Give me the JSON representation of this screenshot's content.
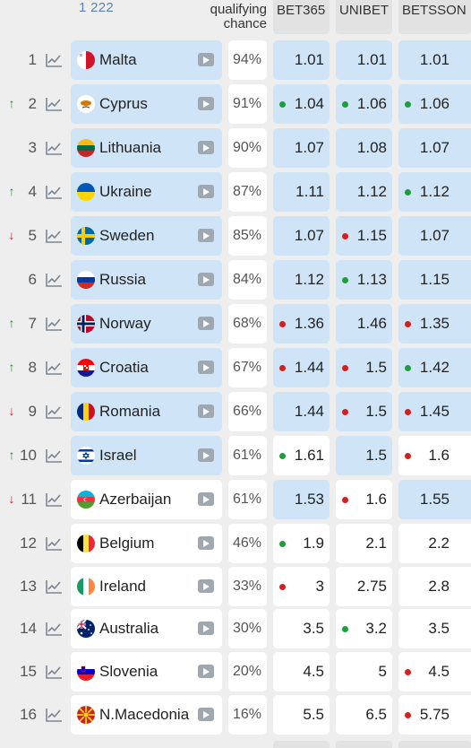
{
  "header": {
    "votes": "1 222",
    "qualifying_line1": "qualifying",
    "qualifying_line2": "chance",
    "bookmakers": [
      "BET365",
      "UNIBET",
      "BETSSON"
    ]
  },
  "colors": {
    "highlight": "#cfe5f7",
    "up": "#2e8b2e",
    "down": "#cc1f1f",
    "dot_green": "#1e9e3a",
    "dot_red": "#d21f1f"
  },
  "rows": [
    {
      "rank": "1",
      "move": "none",
      "country": "Malta",
      "flag": "flag-malta",
      "chance": "94%",
      "highlight": true,
      "odds": [
        {
          "v": "1.01",
          "dot": "",
          "hl": true
        },
        {
          "v": "1.01",
          "dot": "",
          "hl": true
        },
        {
          "v": "1.01",
          "dot": "",
          "hl": true
        }
      ]
    },
    {
      "rank": "2",
      "move": "up",
      "country": "Cyprus",
      "flag": "flag-cyprus",
      "chance": "91%",
      "highlight": true,
      "odds": [
        {
          "v": "1.04",
          "dot": "green",
          "hl": true
        },
        {
          "v": "1.06",
          "dot": "green",
          "hl": true
        },
        {
          "v": "1.06",
          "dot": "green",
          "hl": true
        }
      ]
    },
    {
      "rank": "3",
      "move": "none",
      "country": "Lithuania",
      "flag": "flag-lithuania",
      "chance": "90%",
      "highlight": true,
      "odds": [
        {
          "v": "1.07",
          "dot": "",
          "hl": true
        },
        {
          "v": "1.08",
          "dot": "",
          "hl": true
        },
        {
          "v": "1.07",
          "dot": "",
          "hl": true
        }
      ]
    },
    {
      "rank": "4",
      "move": "up",
      "country": "Ukraine",
      "flag": "flag-ukraine",
      "chance": "87%",
      "highlight": true,
      "odds": [
        {
          "v": "1.11",
          "dot": "",
          "hl": true
        },
        {
          "v": "1.12",
          "dot": "",
          "hl": true
        },
        {
          "v": "1.12",
          "dot": "green",
          "hl": true
        }
      ]
    },
    {
      "rank": "5",
      "move": "down",
      "country": "Sweden",
      "flag": "flag-sweden",
      "chance": "85%",
      "highlight": true,
      "odds": [
        {
          "v": "1.07",
          "dot": "",
          "hl": true
        },
        {
          "v": "1.15",
          "dot": "red",
          "hl": true
        },
        {
          "v": "1.07",
          "dot": "",
          "hl": true
        }
      ]
    },
    {
      "rank": "6",
      "move": "none",
      "country": "Russia",
      "flag": "flag-russia",
      "chance": "84%",
      "highlight": true,
      "odds": [
        {
          "v": "1.12",
          "dot": "",
          "hl": true
        },
        {
          "v": "1.13",
          "dot": "green",
          "hl": true
        },
        {
          "v": "1.15",
          "dot": "",
          "hl": true
        }
      ]
    },
    {
      "rank": "7",
      "move": "up",
      "country": "Norway",
      "flag": "flag-norway",
      "chance": "68%",
      "highlight": true,
      "odds": [
        {
          "v": "1.36",
          "dot": "red",
          "hl": true
        },
        {
          "v": "1.46",
          "dot": "",
          "hl": true
        },
        {
          "v": "1.35",
          "dot": "red",
          "hl": true
        }
      ]
    },
    {
      "rank": "8",
      "move": "up",
      "country": "Croatia",
      "flag": "flag-croatia",
      "chance": "67%",
      "highlight": true,
      "odds": [
        {
          "v": "1.44",
          "dot": "red",
          "hl": true
        },
        {
          "v": "1.5",
          "dot": "red",
          "hl": true
        },
        {
          "v": "1.42",
          "dot": "green",
          "hl": true
        }
      ]
    },
    {
      "rank": "9",
      "move": "down",
      "country": "Romania",
      "flag": "flag-romania",
      "chance": "66%",
      "highlight": true,
      "odds": [
        {
          "v": "1.44",
          "dot": "",
          "hl": true
        },
        {
          "v": "1.5",
          "dot": "red",
          "hl": true
        },
        {
          "v": "1.45",
          "dot": "red",
          "hl": true
        }
      ]
    },
    {
      "rank": "10",
      "move": "up",
      "country": "Israel",
      "flag": "flag-israel",
      "chance": "61%",
      "highlight": true,
      "odds": [
        {
          "v": "1.61",
          "dot": "green",
          "hl": false
        },
        {
          "v": "1.5",
          "dot": "",
          "hl": true
        },
        {
          "v": "1.6",
          "dot": "red",
          "hl": false
        }
      ]
    },
    {
      "rank": "11",
      "move": "down",
      "country": "Azerbaijan",
      "flag": "flag-azerbaijan",
      "chance": "61%",
      "highlight": false,
      "odds": [
        {
          "v": "1.53",
          "dot": "",
          "hl": true
        },
        {
          "v": "1.6",
          "dot": "red",
          "hl": false
        },
        {
          "v": "1.55",
          "dot": "",
          "hl": true
        }
      ]
    },
    {
      "rank": "12",
      "move": "none",
      "country": "Belgium",
      "flag": "flag-belgium",
      "chance": "46%",
      "highlight": false,
      "odds": [
        {
          "v": "1.9",
          "dot": "green",
          "hl": false
        },
        {
          "v": "2.1",
          "dot": "",
          "hl": false
        },
        {
          "v": "2.2",
          "dot": "",
          "hl": false
        }
      ]
    },
    {
      "rank": "13",
      "move": "none",
      "country": "Ireland",
      "flag": "flag-ireland",
      "chance": "33%",
      "highlight": false,
      "odds": [
        {
          "v": "3",
          "dot": "red",
          "hl": false
        },
        {
          "v": "2.75",
          "dot": "",
          "hl": false
        },
        {
          "v": "2.8",
          "dot": "",
          "hl": false
        }
      ]
    },
    {
      "rank": "14",
      "move": "none",
      "country": "Australia",
      "flag": "flag-australia",
      "chance": "30%",
      "highlight": false,
      "odds": [
        {
          "v": "3.5",
          "dot": "",
          "hl": false
        },
        {
          "v": "3.2",
          "dot": "green",
          "hl": false
        },
        {
          "v": "3.5",
          "dot": "",
          "hl": false
        }
      ]
    },
    {
      "rank": "15",
      "move": "none",
      "country": "Slovenia",
      "flag": "flag-slovenia",
      "chance": "20%",
      "highlight": false,
      "odds": [
        {
          "v": "4.5",
          "dot": "",
          "hl": false
        },
        {
          "v": "5",
          "dot": "",
          "hl": false
        },
        {
          "v": "4.5",
          "dot": "red",
          "hl": false
        }
      ]
    },
    {
      "rank": "16",
      "move": "none",
      "country": "N.Macedonia",
      "flag": "flag-north-macedonia",
      "chance": "16%",
      "highlight": false,
      "odds": [
        {
          "v": "5.5",
          "dot": "",
          "hl": false
        },
        {
          "v": "6.5",
          "dot": "",
          "hl": false
        },
        {
          "v": "5.75",
          "dot": "red",
          "hl": false
        }
      ]
    }
  ]
}
